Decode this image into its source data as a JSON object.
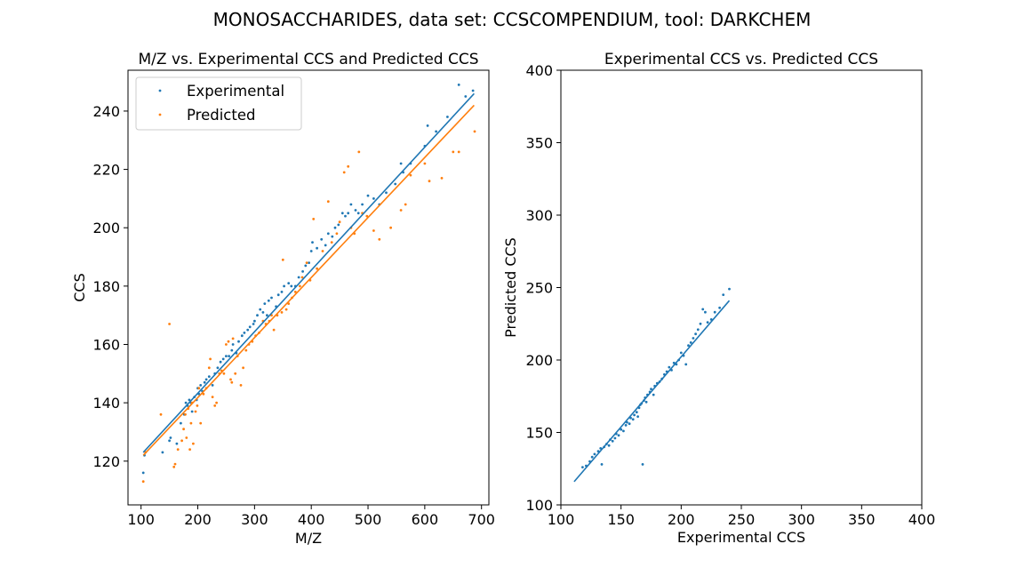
{
  "figure": {
    "suptitle": "MONOSACCHARIDES, data set: CCSCOMPENDIUM, tool: DARKCHEM"
  },
  "colors": {
    "experimental": "#1f77b4",
    "predicted": "#ff7f0e",
    "axes": "#000000",
    "legend_border": "#cccccc"
  },
  "chart_data": [
    {
      "type": "scatter",
      "title": "M/Z vs. Experimental CCS and Predicted CCS",
      "xlabel": "M/Z",
      "ylabel": "CCS",
      "xlim": [
        77,
        713
      ],
      "ylim": [
        105,
        254
      ],
      "xticks": [
        100,
        200,
        300,
        400,
        500,
        600,
        700
      ],
      "yticks": [
        120,
        140,
        160,
        180,
        200,
        220,
        240
      ],
      "grid": false,
      "legend": {
        "placement": "upper-left",
        "entries": [
          "Experimental",
          "Predicted"
        ]
      },
      "series": [
        {
          "name": "Experimental",
          "color": "#1f77b4",
          "points": [
            [
              104,
              116
            ],
            [
              106,
              122
            ],
            [
              138,
              123
            ],
            [
              150,
              127
            ],
            [
              152,
              128
            ],
            [
              163,
              126
            ],
            [
              170,
              133
            ],
            [
              176,
              136
            ],
            [
              179,
              140
            ],
            [
              182,
              139
            ],
            [
              185,
              141
            ],
            [
              188,
              140
            ],
            [
              190,
              137
            ],
            [
              194,
              142
            ],
            [
              198,
              141
            ],
            [
              200,
              145
            ],
            [
              202,
              143
            ],
            [
              205,
              146
            ],
            [
              208,
              144
            ],
            [
              212,
              147
            ],
            [
              215,
              148
            ],
            [
              220,
              149
            ],
            [
              226,
              146
            ],
            [
              230,
              150
            ],
            [
              235,
              152
            ],
            [
              240,
              154
            ],
            [
              245,
              155
            ],
            [
              250,
              156
            ],
            [
              255,
              156
            ],
            [
              260,
              158
            ],
            [
              262,
              160
            ],
            [
              268,
              157
            ],
            [
              272,
              161
            ],
            [
              278,
              163
            ],
            [
              282,
              164
            ],
            [
              288,
              165
            ],
            [
              292,
              166
            ],
            [
              298,
              167
            ],
            [
              300,
              168
            ],
            [
              305,
              170
            ],
            [
              310,
              172
            ],
            [
              315,
              171
            ],
            [
              318,
              174
            ],
            [
              322,
              170
            ],
            [
              325,
              175
            ],
            [
              330,
              176
            ],
            [
              338,
              173
            ],
            [
              342,
              177
            ],
            [
              348,
              178
            ],
            [
              352,
              180
            ],
            [
              360,
              181
            ],
            [
              365,
              180
            ],
            [
              372,
              180
            ],
            [
              378,
              183
            ],
            [
              385,
              185
            ],
            [
              390,
              187
            ],
            [
              396,
              188
            ],
            [
              400,
              192
            ],
            [
              402,
              195
            ],
            [
              410,
              193
            ],
            [
              418,
              196
            ],
            [
              425,
              194
            ],
            [
              430,
              198
            ],
            [
              437,
              197
            ],
            [
              442,
              200
            ],
            [
              448,
              201
            ],
            [
              455,
              205
            ],
            [
              460,
              204
            ],
            [
              465,
              205
            ],
            [
              470,
              208
            ],
            [
              478,
              206
            ],
            [
              483,
              205
            ],
            [
              490,
              208
            ],
            [
              500,
              211
            ],
            [
              510,
              210
            ],
            [
              520,
              208
            ],
            [
              532,
              212
            ],
            [
              548,
              215
            ],
            [
              558,
              222
            ],
            [
              562,
              219
            ],
            [
              575,
              222
            ],
            [
              600,
              228
            ],
            [
              605,
              235
            ],
            [
              620,
              233
            ],
            [
              640,
              238
            ],
            [
              660,
              249
            ],
            [
              672,
              245
            ],
            [
              685,
              247
            ]
          ],
          "fit": [
            [
              104,
              123
            ],
            [
              687,
              246
            ]
          ]
        },
        {
          "name": "Predicted",
          "color": "#ff7f0e",
          "points": [
            [
              104,
              113
            ],
            [
              108,
              123
            ],
            [
              135,
              136
            ],
            [
              150,
              167
            ],
            [
              158,
              118
            ],
            [
              160,
              119
            ],
            [
              165,
              124
            ],
            [
              172,
              127
            ],
            [
              175,
              131
            ],
            [
              178,
              136
            ],
            [
              180,
              128
            ],
            [
              183,
              138
            ],
            [
              186,
              124
            ],
            [
              188,
              133
            ],
            [
              190,
              140
            ],
            [
              192,
              126
            ],
            [
              196,
              137
            ],
            [
              199,
              139
            ],
            [
              202,
              145
            ],
            [
              205,
              133
            ],
            [
              210,
              143
            ],
            [
              215,
              145
            ],
            [
              220,
              152
            ],
            [
              222,
              155
            ],
            [
              226,
              142
            ],
            [
              230,
              139
            ],
            [
              233,
              140
            ],
            [
              238,
              150
            ],
            [
              242,
              151
            ],
            [
              246,
              150
            ],
            [
              250,
              160
            ],
            [
              254,
              161
            ],
            [
              258,
              148
            ],
            [
              260,
              147
            ],
            [
              262,
              162
            ],
            [
              266,
              150
            ],
            [
              270,
              156
            ],
            [
              276,
              146
            ],
            [
              280,
              152
            ],
            [
              285,
              158
            ],
            [
              290,
              160
            ],
            [
              296,
              161
            ],
            [
              302,
              163
            ],
            [
              308,
              164
            ],
            [
              315,
              168
            ],
            [
              320,
              167
            ],
            [
              326,
              168
            ],
            [
              330,
              170
            ],
            [
              334,
              165
            ],
            [
              340,
              170
            ],
            [
              348,
              171
            ],
            [
              350,
              189
            ],
            [
              356,
              172
            ],
            [
              360,
              174
            ],
            [
              366,
              176
            ],
            [
              372,
              178
            ],
            [
              380,
              180
            ],
            [
              384,
              183
            ],
            [
              392,
              188
            ],
            [
              398,
              182
            ],
            [
              404,
              203
            ],
            [
              410,
              186
            ],
            [
              420,
              192
            ],
            [
              430,
              209
            ],
            [
              436,
              195
            ],
            [
              445,
              198
            ],
            [
              450,
              202
            ],
            [
              458,
              219
            ],
            [
              465,
              221
            ],
            [
              470,
              200
            ],
            [
              476,
              198
            ],
            [
              484,
              226
            ],
            [
              490,
              205
            ],
            [
              498,
              204
            ],
            [
              510,
              199
            ],
            [
              520,
              196
            ],
            [
              540,
              200
            ],
            [
              558,
              206
            ],
            [
              566,
              208
            ],
            [
              575,
              218
            ],
            [
              600,
              222
            ],
            [
              608,
              216
            ],
            [
              630,
              217
            ],
            [
              650,
              226
            ],
            [
              660,
              226
            ],
            [
              688,
              233
            ]
          ],
          "fit": [
            [
              104,
              122
            ],
            [
              687,
              242
            ]
          ]
        }
      ]
    },
    {
      "type": "scatter",
      "title": "Experimental CCS vs. Predicted CCS",
      "xlabel": "Experimental CCS",
      "ylabel": "Predicted CCS",
      "xlim": [
        100,
        400
      ],
      "ylim": [
        100,
        400
      ],
      "xticks": [
        100,
        150,
        200,
        250,
        300,
        350,
        400
      ],
      "yticks": [
        100,
        150,
        200,
        250,
        300,
        350,
        400
      ],
      "grid": false,
      "series": [
        {
          "color": "#1f77b4",
          "points": [
            [
              118,
              126
            ],
            [
              121,
              127
            ],
            [
              124,
              130
            ],
            [
              126,
              133
            ],
            [
              128,
              135
            ],
            [
              131,
              137
            ],
            [
              133,
              139
            ],
            [
              134,
              128
            ],
            [
              136,
              140
            ],
            [
              138,
              142
            ],
            [
              140,
              141
            ],
            [
              141,
              145
            ],
            [
              143,
              144
            ],
            [
              145,
              146
            ],
            [
              146,
              149
            ],
            [
              148,
              148
            ],
            [
              150,
              152
            ],
            [
              152,
              151
            ],
            [
              154,
              155
            ],
            [
              155,
              157
            ],
            [
              157,
              156
            ],
            [
              158,
              160
            ],
            [
              160,
              159
            ],
            [
              161,
              162
            ],
            [
              163,
              164
            ],
            [
              164,
              161
            ],
            [
              165,
              167
            ],
            [
              166,
              169
            ],
            [
              167,
              170
            ],
            [
              168,
              128
            ],
            [
              169,
              172
            ],
            [
              170,
              174
            ],
            [
              171,
              171
            ],
            [
              172,
              176
            ],
            [
              174,
              178
            ],
            [
              175,
              180
            ],
            [
              177,
              176
            ],
            [
              178,
              182
            ],
            [
              180,
              184
            ],
            [
              182,
              185
            ],
            [
              184,
              187
            ],
            [
              186,
              190
            ],
            [
              188,
              192
            ],
            [
              190,
              195
            ],
            [
              192,
              193
            ],
            [
              194,
              198
            ],
            [
              196,
              197
            ],
            [
              198,
              200
            ],
            [
              200,
              205
            ],
            [
              202,
              203
            ],
            [
              204,
              197
            ],
            [
              206,
              210
            ],
            [
              208,
              212
            ],
            [
              210,
              215
            ],
            [
              212,
              218
            ],
            [
              214,
              221
            ],
            [
              216,
              225
            ],
            [
              218,
              235
            ],
            [
              220,
              233
            ],
            [
              222,
              226
            ],
            [
              225,
              228
            ],
            [
              228,
              233
            ],
            [
              232,
              236
            ],
            [
              235,
              245
            ],
            [
              240,
              249
            ]
          ],
          "fit": [
            [
              111,
              116
            ],
            [
              240,
              241
            ]
          ]
        }
      ]
    }
  ]
}
